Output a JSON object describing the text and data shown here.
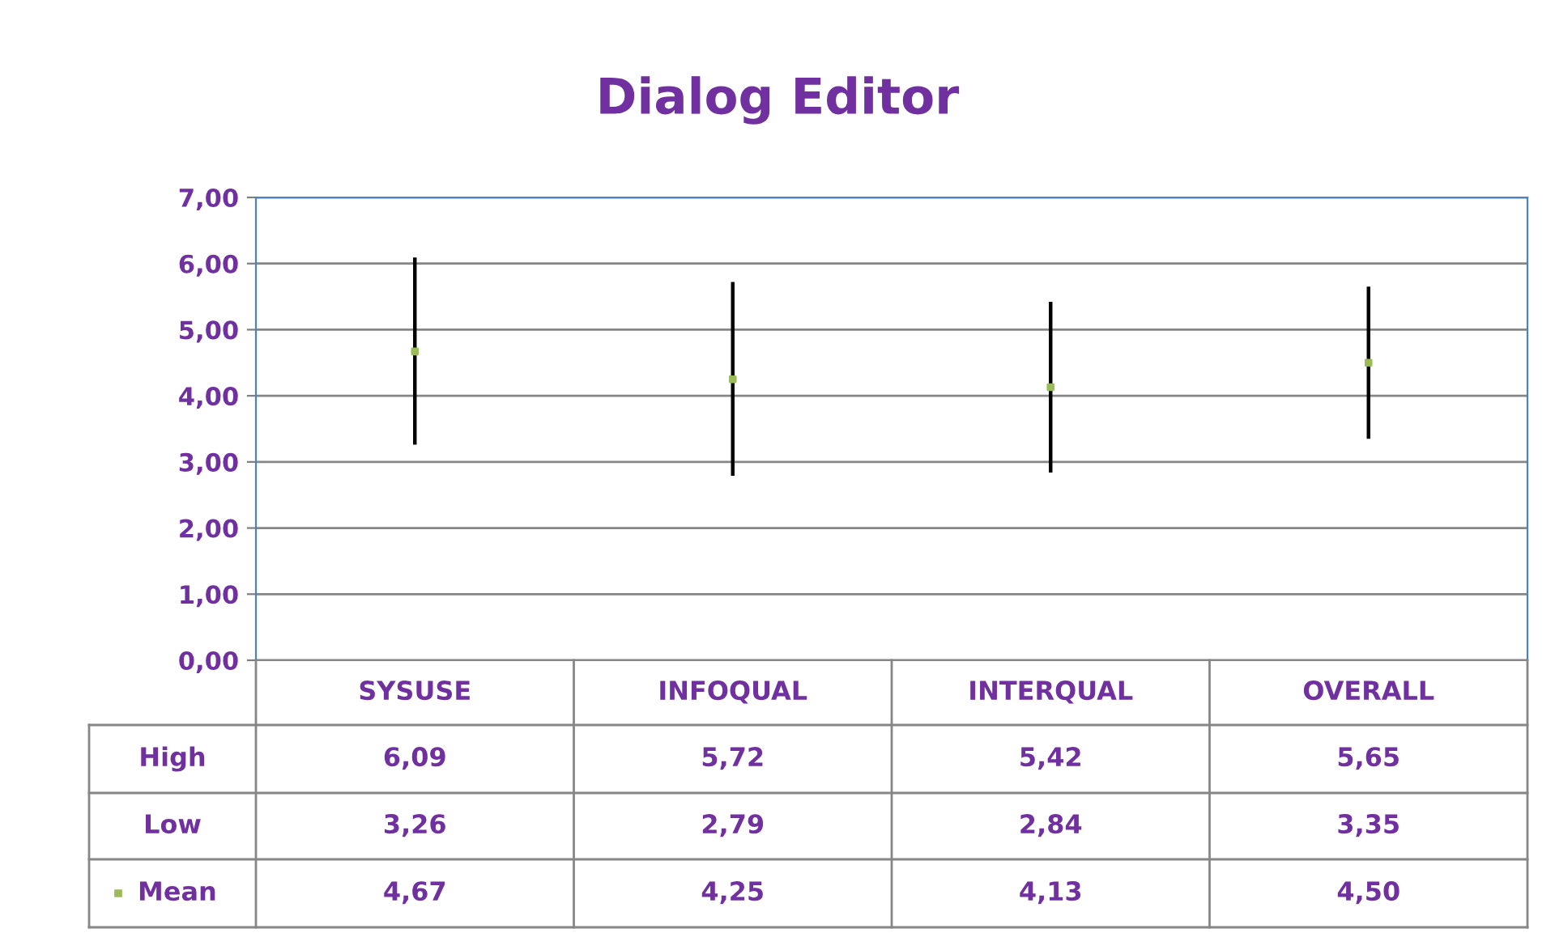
{
  "chart_data": {
    "type": "scatter",
    "title": "Dialog Editor",
    "categories": [
      "SYSUSE",
      "INFOQUAL",
      "INTERQUAL",
      "OVERALL"
    ],
    "series": [
      {
        "name": "Mean",
        "marker": "square",
        "color": "#9bbb59",
        "values": [
          4.67,
          4.25,
          4.13,
          4.5
        ],
        "errors": [
          [
            3.26,
            6.09
          ],
          [
            2.79,
            5.72
          ],
          [
            2.84,
            5.42
          ],
          [
            3.35,
            5.65
          ]
        ],
        "value_labels": [
          "4,67",
          "4,25",
          "4,13",
          "4,50"
        ]
      }
    ],
    "annotations": [
      "High",
      "6,09",
      "5,72",
      "5,42",
      "5,65",
      "Low",
      "3,26",
      "2,79",
      "2,84",
      "3,35"
    ],
    "ylim": [
      0,
      7
    ],
    "yticks": [
      {
        "value": 0,
        "label": "0,00"
      },
      {
        "value": 1,
        "label": "1,00"
      },
      {
        "value": 2,
        "label": "2,00"
      },
      {
        "value": 3,
        "label": "3,00"
      },
      {
        "value": 4,
        "label": "4,00"
      },
      {
        "value": 5,
        "label": "5,00"
      },
      {
        "value": 6,
        "label": "6,00"
      },
      {
        "value": 7,
        "label": "7,00"
      }
    ],
    "grid": "y",
    "legend": "bottom left"
  }
}
